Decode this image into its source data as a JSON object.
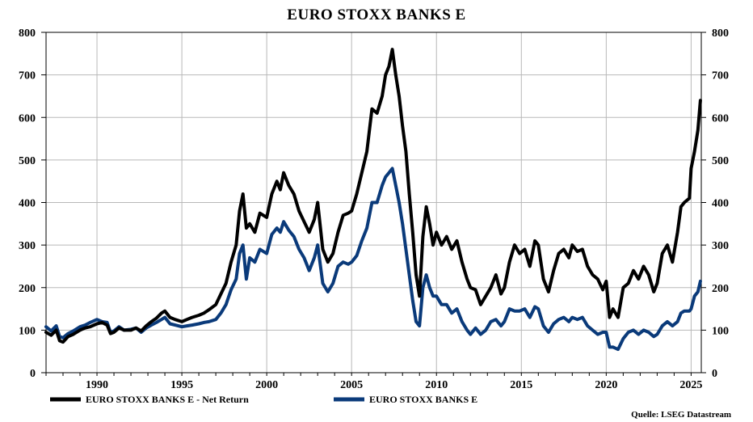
{
  "chart_data": {
    "type": "line",
    "title": "EURO STOXX BANKS E",
    "source": "Quelle: LSEG Datastream",
    "xlim": [
      1987.0,
      2025.6
    ],
    "ylim": [
      0,
      800
    ],
    "x_ticks": [
      1990,
      1995,
      2000,
      2005,
      2010,
      2015,
      2020,
      2025
    ],
    "y_ticks": [
      0,
      100,
      200,
      300,
      400,
      500,
      600,
      700,
      800
    ],
    "grid": true,
    "legend_position": "bottom",
    "series": [
      {
        "name": "EURO STOXX BANKS E - Net Return",
        "color": "#000000",
        "x": [
          1987.0,
          1987.3,
          1987.6,
          1987.8,
          1988.0,
          1988.3,
          1988.6,
          1989.0,
          1989.3,
          1989.6,
          1990.0,
          1990.3,
          1990.6,
          1990.8,
          1991.0,
          1991.3,
          1991.6,
          1992.0,
          1992.3,
          1992.6,
          1992.9,
          1993.2,
          1993.5,
          1993.8,
          1994.0,
          1994.3,
          1994.6,
          1995.0,
          1995.3,
          1995.6,
          1996.0,
          1996.3,
          1996.6,
          1997.0,
          1997.3,
          1997.6,
          1997.9,
          1998.2,
          1998.4,
          1998.6,
          1998.8,
          1999.0,
          1999.3,
          1999.6,
          2000.0,
          2000.3,
          2000.6,
          2000.8,
          2001.0,
          2001.3,
          2001.6,
          2001.9,
          2002.2,
          2002.5,
          2002.8,
          2003.0,
          2003.3,
          2003.6,
          2003.9,
          2004.2,
          2004.5,
          2004.8,
          2005.0,
          2005.3,
          2005.6,
          2005.9,
          2006.2,
          2006.5,
          2006.8,
          2007.0,
          2007.2,
          2007.4,
          2007.6,
          2007.8,
          2008.0,
          2008.2,
          2008.4,
          2008.6,
          2008.8,
          2009.0,
          2009.2,
          2009.4,
          2009.6,
          2009.8,
          2010.0,
          2010.3,
          2010.6,
          2010.9,
          2011.2,
          2011.5,
          2011.8,
          2012.0,
          2012.3,
          2012.6,
          2012.9,
          2013.2,
          2013.5,
          2013.8,
          2014.0,
          2014.3,
          2014.6,
          2014.9,
          2015.2,
          2015.5,
          2015.8,
          2016.0,
          2016.3,
          2016.6,
          2016.9,
          2017.2,
          2017.5,
          2017.8,
          2018.0,
          2018.3,
          2018.6,
          2018.9,
          2019.2,
          2019.5,
          2019.8,
          2020.0,
          2020.2,
          2020.4,
          2020.7,
          2021.0,
          2021.3,
          2021.6,
          2021.9,
          2022.2,
          2022.5,
          2022.8,
          2023.0,
          2023.3,
          2023.6,
          2023.9,
          2024.2,
          2024.4,
          2024.6,
          2024.9,
          2025.0,
          2025.2,
          2025.4,
          2025.55
        ],
        "values": [
          95,
          88,
          100,
          75,
          72,
          85,
          90,
          100,
          105,
          108,
          115,
          118,
          112,
          92,
          95,
          105,
          100,
          100,
          105,
          98,
          110,
          120,
          128,
          140,
          145,
          130,
          125,
          120,
          125,
          130,
          135,
          140,
          148,
          160,
          185,
          210,
          260,
          300,
          380,
          420,
          340,
          350,
          330,
          375,
          365,
          420,
          450,
          430,
          470,
          440,
          420,
          380,
          355,
          330,
          360,
          400,
          290,
          260,
          280,
          330,
          370,
          375,
          380,
          420,
          470,
          520,
          620,
          610,
          650,
          700,
          720,
          760,
          700,
          650,
          580,
          520,
          420,
          330,
          230,
          180,
          320,
          390,
          350,
          300,
          330,
          300,
          320,
          290,
          310,
          260,
          220,
          200,
          195,
          160,
          180,
          200,
          230,
          185,
          200,
          260,
          300,
          280,
          290,
          250,
          310,
          300,
          220,
          190,
          240,
          280,
          290,
          270,
          300,
          285,
          290,
          250,
          230,
          220,
          195,
          215,
          130,
          150,
          130,
          200,
          210,
          240,
          220,
          250,
          230,
          190,
          210,
          280,
          300,
          260,
          330,
          390,
          400,
          410,
          480,
          520,
          570,
          640
        ]
      },
      {
        "name": "EURO STOXX BANKS E",
        "color": "#0a3a7a",
        "x": [
          1987.0,
          1987.3,
          1987.6,
          1987.8,
          1988.0,
          1988.3,
          1988.6,
          1989.0,
          1989.3,
          1989.6,
          1990.0,
          1990.3,
          1990.6,
          1990.8,
          1991.0,
          1991.3,
          1991.6,
          1992.0,
          1992.3,
          1992.6,
          1992.9,
          1993.2,
          1993.5,
          1993.8,
          1994.0,
          1994.3,
          1994.6,
          1995.0,
          1995.3,
          1995.6,
          1996.0,
          1996.3,
          1996.6,
          1997.0,
          1997.3,
          1997.6,
          1997.9,
          1998.2,
          1998.4,
          1998.6,
          1998.8,
          1999.0,
          1999.3,
          1999.6,
          2000.0,
          2000.3,
          2000.6,
          2000.8,
          2001.0,
          2001.3,
          2001.6,
          2001.9,
          2002.2,
          2002.5,
          2002.8,
          2003.0,
          2003.3,
          2003.6,
          2003.9,
          2004.2,
          2004.5,
          2004.8,
          2005.0,
          2005.3,
          2005.6,
          2005.9,
          2006.2,
          2006.5,
          2006.8,
          2007.0,
          2007.2,
          2007.4,
          2007.6,
          2007.8,
          2008.0,
          2008.2,
          2008.4,
          2008.6,
          2008.8,
          2009.0,
          2009.2,
          2009.4,
          2009.6,
          2009.8,
          2010.0,
          2010.3,
          2010.6,
          2010.9,
          2011.2,
          2011.5,
          2011.8,
          2012.0,
          2012.3,
          2012.6,
          2012.9,
          2013.2,
          2013.5,
          2013.8,
          2014.0,
          2014.3,
          2014.6,
          2014.9,
          2015.2,
          2015.5,
          2015.8,
          2016.0,
          2016.3,
          2016.6,
          2016.9,
          2017.2,
          2017.5,
          2017.8,
          2018.0,
          2018.3,
          2018.6,
          2018.9,
          2019.2,
          2019.5,
          2019.8,
          2020.0,
          2020.2,
          2020.4,
          2020.7,
          2021.0,
          2021.3,
          2021.6,
          2021.9,
          2022.2,
          2022.5,
          2022.8,
          2023.0,
          2023.3,
          2023.6,
          2023.9,
          2024.2,
          2024.4,
          2024.6,
          2024.9,
          2025.0,
          2025.2,
          2025.4,
          2025.55
        ],
        "values": [
          108,
          98,
          110,
          85,
          82,
          92,
          98,
          108,
          112,
          118,
          125,
          120,
          118,
          95,
          98,
          108,
          100,
          102,
          105,
          95,
          105,
          112,
          118,
          125,
          130,
          115,
          112,
          108,
          110,
          112,
          115,
          118,
          120,
          125,
          140,
          160,
          195,
          220,
          280,
          300,
          220,
          270,
          260,
          290,
          280,
          325,
          340,
          330,
          355,
          335,
          320,
          290,
          270,
          240,
          270,
          300,
          210,
          190,
          210,
          250,
          260,
          255,
          260,
          275,
          310,
          340,
          400,
          400,
          440,
          460,
          470,
          480,
          440,
          400,
          350,
          290,
          230,
          170,
          120,
          110,
          200,
          230,
          200,
          180,
          180,
          160,
          160,
          140,
          150,
          120,
          100,
          90,
          105,
          90,
          100,
          120,
          125,
          110,
          120,
          150,
          145,
          145,
          150,
          130,
          155,
          150,
          110,
          95,
          115,
          125,
          130,
          120,
          130,
          125,
          130,
          110,
          100,
          90,
          95,
          95,
          60,
          60,
          55,
          80,
          95,
          100,
          90,
          100,
          95,
          85,
          90,
          110,
          120,
          110,
          120,
          140,
          145,
          145,
          150,
          180,
          190,
          215
        ]
      }
    ]
  }
}
